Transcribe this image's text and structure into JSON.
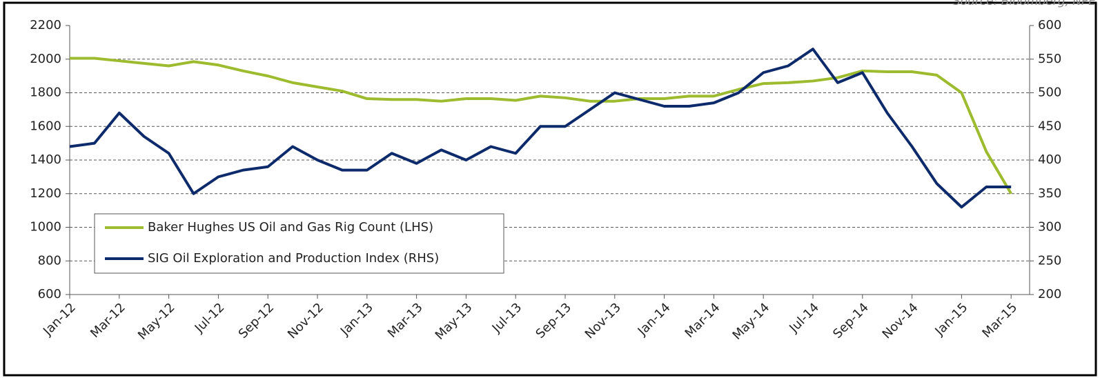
{
  "chart_data": {
    "type": "line",
    "annotation": "Source: Bloomberg, NPE",
    "categories": [
      "Jan-12",
      null,
      "Mar-12",
      null,
      "May-12",
      null,
      "Jul-12",
      null,
      "Sep-12",
      null,
      "Nov-12",
      null,
      "Jan-13",
      null,
      "Mar-13",
      null,
      "May-13",
      null,
      "Jul-13",
      null,
      "Sep-13",
      null,
      "Nov-13",
      null,
      "Jan-14",
      null,
      "Mar-14",
      null,
      "May-14",
      null,
      "Jul-14",
      null,
      "Sep-14",
      null,
      "Nov-14",
      null,
      "Jan-15",
      null,
      "Mar-15"
    ],
    "series": [
      {
        "name": "Baker Hughes US Oil and Gas Rig Count (LHS)",
        "color": "#9dbb2e",
        "axis": "y",
        "values": [
          2005,
          2005,
          1990,
          1975,
          1960,
          1985,
          1965,
          1930,
          1900,
          1860,
          1835,
          1810,
          1765,
          1760,
          1760,
          1750,
          1765,
          1765,
          1755,
          1780,
          1770,
          1750,
          1750,
          1765,
          1765,
          1780,
          1780,
          1820,
          1855,
          1860,
          1870,
          1890,
          1930,
          1925,
          1925,
          1905,
          1800,
          1450,
          1200
        ]
      },
      {
        "name": "SIG Oil Exploration and Production Index (RHS)",
        "color": "#0d2a6b",
        "axis": "y2",
        "values": [
          420,
          425,
          470,
          435,
          410,
          350,
          375,
          385,
          390,
          420,
          400,
          385,
          385,
          410,
          395,
          415,
          400,
          420,
          410,
          450,
          450,
          475,
          500,
          490,
          480,
          480,
          485,
          500,
          530,
          540,
          565,
          515,
          530,
          470,
          420,
          365,
          330,
          360,
          360
        ]
      }
    ],
    "ylim": [
      600,
      2200
    ],
    "yticks": [
      600,
      800,
      1000,
      1200,
      1400,
      1600,
      1800,
      2000,
      2200
    ],
    "y2lim": [
      200,
      600
    ],
    "y2ticks": [
      200,
      250,
      300,
      350,
      400,
      450,
      500,
      550,
      600
    ],
    "grid": true,
    "legend": "lower left"
  }
}
